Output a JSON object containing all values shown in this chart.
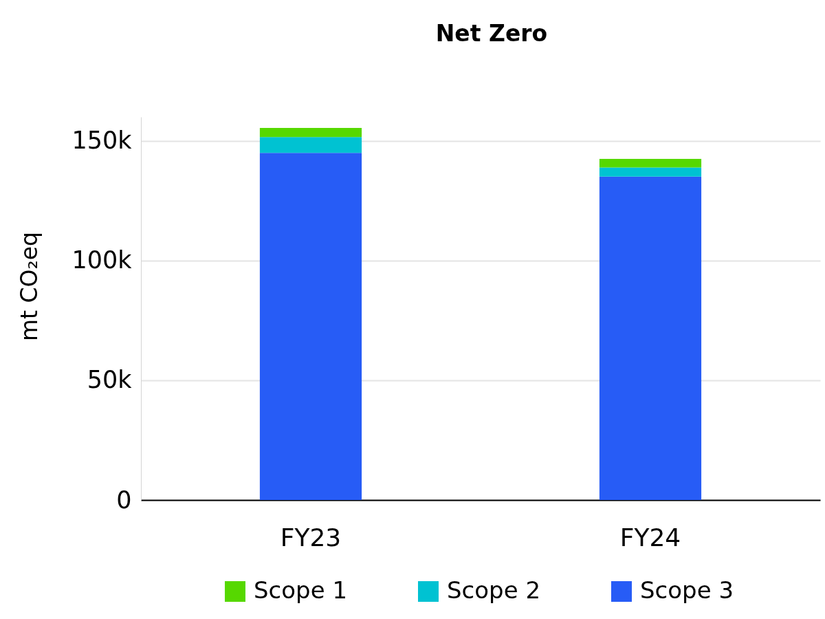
{
  "chart_data": {
    "type": "bar",
    "title": "Net Zero",
    "ylabel": "mt CO₂eq",
    "categories": [
      "FY23",
      "FY24"
    ],
    "stacked": true,
    "series": [
      {
        "name": "Scope 3",
        "color": "#275cf6",
        "values": [
          145000,
          135100
        ]
      },
      {
        "name": "Scope 2",
        "color": "#00c2d2",
        "values": [
          6600,
          3800
        ]
      },
      {
        "name": "Scope 1",
        "color": "#56d800",
        "values": [
          3800,
          3600
        ]
      }
    ],
    "ylim": [
      0,
      160000
    ],
    "yticks": [
      0,
      {
        "value": 50000,
        "label": "50k"
      },
      {
        "value": 100000,
        "label": "100k"
      },
      {
        "value": 150000,
        "label": "150k"
      }
    ],
    "grid": "y",
    "legend": "bottom"
  }
}
